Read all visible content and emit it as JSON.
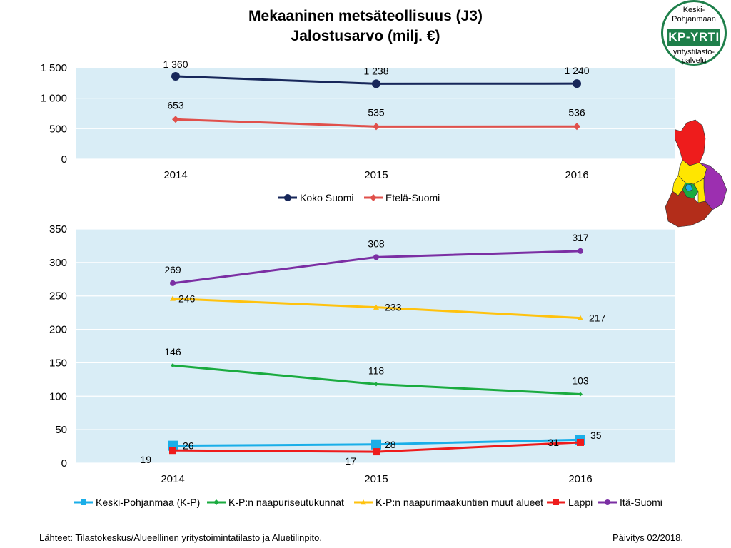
{
  "title_line1": "Mekaaninen metsäteollisuus (J3)",
  "title_line2": "Jalostusarvo (milj. €)",
  "badge": {
    "top": "Keski-",
    "top2": "Pohjanmaan",
    "brand": "KP-YRTI",
    "bottom": "yritystilasto-",
    "bottom2": "palvelu"
  },
  "footer": {
    "source": "Lähteet: Tilastokeskus/Alueellinen yritystoimintatilasto ja Aluetilinpito.",
    "update": "Päivitys 02/2018."
  },
  "colors": {
    "plot_bg": "#d9edf6",
    "grid": "#ffffff",
    "koko_suomi": "#17275a",
    "etela_suomi": "#e0504b",
    "keski_pohjanmaa": "#1aaee8",
    "naapuriseutukunnat": "#1aab3f",
    "naapurimaakunnat": "#ffc20e",
    "lappi": "#ee1c1c",
    "ita_suomi": "#7b2fa3"
  },
  "chart_data": [
    {
      "type": "line",
      "categories": [
        "2014",
        "2015",
        "2016"
      ],
      "ylim": [
        0,
        1500
      ],
      "yticks": [
        0,
        500,
        1000,
        1500
      ],
      "ytick_labels": [
        "0",
        "500",
        "1 000",
        "1 500"
      ],
      "grid": true,
      "legend": "bottom",
      "series": [
        {
          "name": "Koko Suomi",
          "values": [
            1360,
            1238,
            1240
          ],
          "labels": [
            "1 360",
            "1 238",
            "1 240"
          ],
          "color": "#17275a",
          "marker": "circle"
        },
        {
          "name": "Etelä-Suomi",
          "values": [
            653,
            535,
            536
          ],
          "labels": [
            "653",
            "535",
            "536"
          ],
          "color": "#e0504b",
          "marker": "diamond"
        }
      ]
    },
    {
      "type": "line",
      "categories": [
        "2014",
        "2015",
        "2016"
      ],
      "ylim": [
        0,
        350
      ],
      "yticks": [
        0,
        50,
        100,
        150,
        200,
        250,
        300,
        350
      ],
      "ytick_labels": [
        "0",
        "50",
        "100",
        "150",
        "200",
        "250",
        "300",
        "350"
      ],
      "grid": true,
      "legend": "bottom",
      "series": [
        {
          "name": "Keski-Pohjanmaa (K-P)",
          "values": [
            26,
            28,
            35
          ],
          "labels": [
            "26",
            "28",
            "35"
          ],
          "color": "#1aaee8",
          "marker": "square"
        },
        {
          "name": "K-P:n naapuriseutukunnat",
          "values": [
            146,
            118,
            103
          ],
          "labels": [
            "146",
            "118",
            "103"
          ],
          "color": "#1aab3f",
          "marker": "diamond"
        },
        {
          "name": "K-P:n naapurimaakuntien muut alueet",
          "values": [
            246,
            233,
            217
          ],
          "labels": [
            "246",
            "233",
            "217"
          ],
          "color": "#ffc20e",
          "marker": "triangle"
        },
        {
          "name": "Lappi",
          "values": [
            19,
            17,
            31
          ],
          "labels": [
            "19",
            "17",
            "31"
          ],
          "color": "#ee1c1c",
          "marker": "square"
        },
        {
          "name": "Itä-Suomi",
          "values": [
            269,
            308,
            317
          ],
          "labels": [
            "269",
            "308",
            "317"
          ],
          "color": "#7b2fa3",
          "marker": "circle"
        }
      ]
    }
  ]
}
